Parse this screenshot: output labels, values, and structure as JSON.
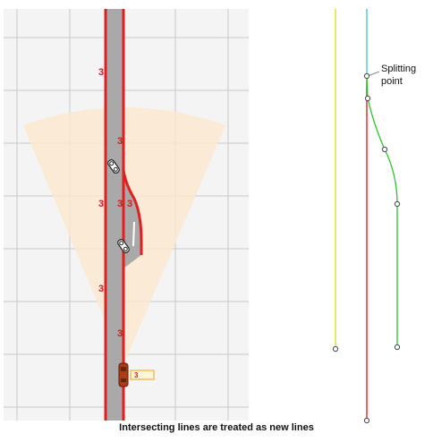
{
  "diagram": {
    "splitting_point_label": "Splitting point",
    "caption": "Intersecting lines are treated as new lines",
    "lane_marker": "3"
  },
  "colors": {
    "grid_bg": "#f4f4f4",
    "grid_line": "#c8c8c8",
    "road": "#a9a9a9",
    "lane_line": "#e02020",
    "sensor_fan": "#fbe8cf",
    "line_yellow": "#e7d31f",
    "line_cyan": "#35c6d8",
    "line_red": "#d81818",
    "line_green": "#30c030"
  }
}
